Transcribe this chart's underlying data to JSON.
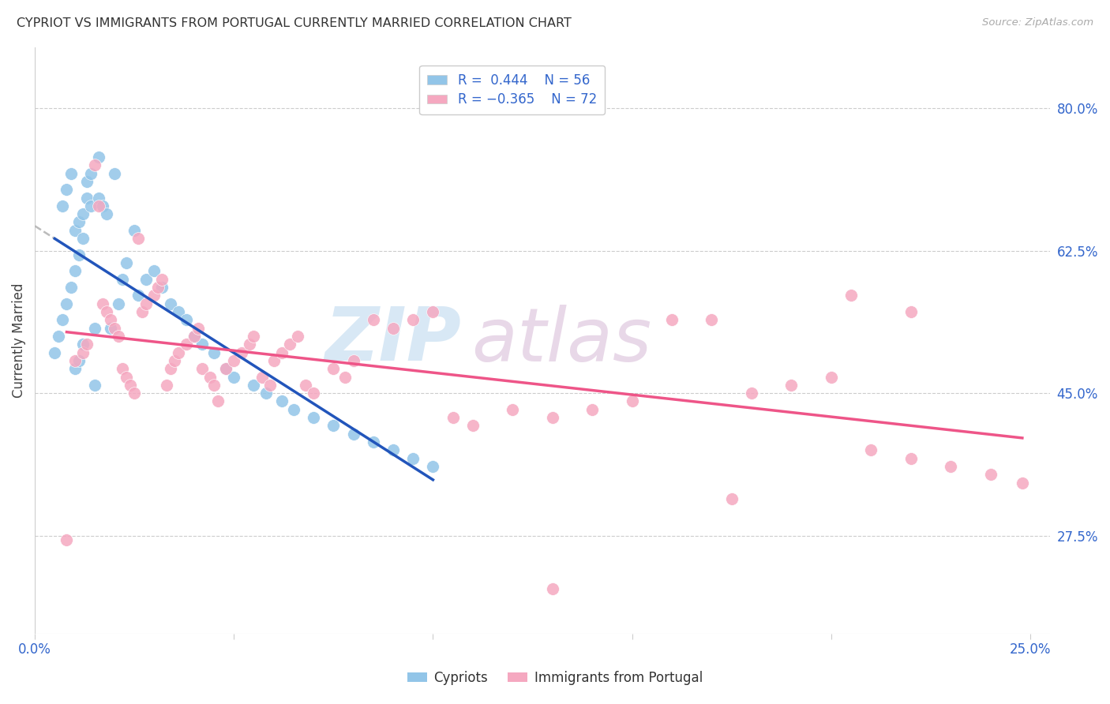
{
  "title": "CYPRIOT VS IMMIGRANTS FROM PORTUGAL CURRENTLY MARRIED CORRELATION CHART",
  "source": "Source: ZipAtlas.com",
  "ylabel": "Currently Married",
  "ytick_values": [
    0.8,
    0.625,
    0.45,
    0.275
  ],
  "xmin": 0.0,
  "xmax": 0.255,
  "ymin": 0.155,
  "ymax": 0.875,
  "legend_r1": "R =  0.444",
  "legend_n1": "N = 56",
  "legend_r2": "R = -0.365",
  "legend_n2": "N = 72",
  "color_blue": "#92C5E8",
  "color_pink": "#F5A8C0",
  "line_blue": "#2255BB",
  "line_pink": "#EE5588",
  "line_dashed": "#BBBBBB",
  "watermark_zip": "ZIP",
  "watermark_atlas": "atlas",
  "blue_x": [
    0.005,
    0.006,
    0.007,
    0.007,
    0.008,
    0.008,
    0.009,
    0.009,
    0.01,
    0.01,
    0.01,
    0.011,
    0.011,
    0.011,
    0.012,
    0.012,
    0.012,
    0.013,
    0.013,
    0.014,
    0.014,
    0.015,
    0.015,
    0.016,
    0.016,
    0.017,
    0.018,
    0.019,
    0.02,
    0.021,
    0.022,
    0.023,
    0.025,
    0.026,
    0.028,
    0.03,
    0.032,
    0.034,
    0.036,
    0.038,
    0.04,
    0.042,
    0.045,
    0.048,
    0.05,
    0.055,
    0.058,
    0.062,
    0.065,
    0.07,
    0.075,
    0.08,
    0.085,
    0.09,
    0.095,
    0.1
  ],
  "blue_y": [
    0.5,
    0.52,
    0.54,
    0.68,
    0.56,
    0.7,
    0.58,
    0.72,
    0.6,
    0.65,
    0.48,
    0.62,
    0.66,
    0.49,
    0.64,
    0.67,
    0.51,
    0.69,
    0.71,
    0.68,
    0.72,
    0.53,
    0.46,
    0.74,
    0.69,
    0.68,
    0.67,
    0.53,
    0.72,
    0.56,
    0.59,
    0.61,
    0.65,
    0.57,
    0.59,
    0.6,
    0.58,
    0.56,
    0.55,
    0.54,
    0.52,
    0.51,
    0.5,
    0.48,
    0.47,
    0.46,
    0.45,
    0.44,
    0.43,
    0.42,
    0.41,
    0.4,
    0.39,
    0.38,
    0.37,
    0.36
  ],
  "pink_x": [
    0.008,
    0.01,
    0.012,
    0.013,
    0.015,
    0.016,
    0.017,
    0.018,
    0.019,
    0.02,
    0.021,
    0.022,
    0.023,
    0.024,
    0.025,
    0.026,
    0.027,
    0.028,
    0.03,
    0.031,
    0.032,
    0.033,
    0.034,
    0.035,
    0.036,
    0.038,
    0.04,
    0.041,
    0.042,
    0.044,
    0.045,
    0.046,
    0.048,
    0.05,
    0.052,
    0.054,
    0.055,
    0.057,
    0.059,
    0.06,
    0.062,
    0.064,
    0.066,
    0.068,
    0.07,
    0.075,
    0.078,
    0.08,
    0.085,
    0.09,
    0.095,
    0.1,
    0.105,
    0.11,
    0.12,
    0.13,
    0.14,
    0.15,
    0.16,
    0.17,
    0.18,
    0.19,
    0.2,
    0.21,
    0.22,
    0.23,
    0.24,
    0.248,
    0.22,
    0.205,
    0.175,
    0.13
  ],
  "pink_y": [
    0.27,
    0.49,
    0.5,
    0.51,
    0.73,
    0.68,
    0.56,
    0.55,
    0.54,
    0.53,
    0.52,
    0.48,
    0.47,
    0.46,
    0.45,
    0.64,
    0.55,
    0.56,
    0.57,
    0.58,
    0.59,
    0.46,
    0.48,
    0.49,
    0.5,
    0.51,
    0.52,
    0.53,
    0.48,
    0.47,
    0.46,
    0.44,
    0.48,
    0.49,
    0.5,
    0.51,
    0.52,
    0.47,
    0.46,
    0.49,
    0.5,
    0.51,
    0.52,
    0.46,
    0.45,
    0.48,
    0.47,
    0.49,
    0.54,
    0.53,
    0.54,
    0.55,
    0.42,
    0.41,
    0.43,
    0.42,
    0.43,
    0.44,
    0.54,
    0.54,
    0.45,
    0.46,
    0.47,
    0.38,
    0.37,
    0.36,
    0.35,
    0.34,
    0.55,
    0.57,
    0.32,
    0.21
  ]
}
